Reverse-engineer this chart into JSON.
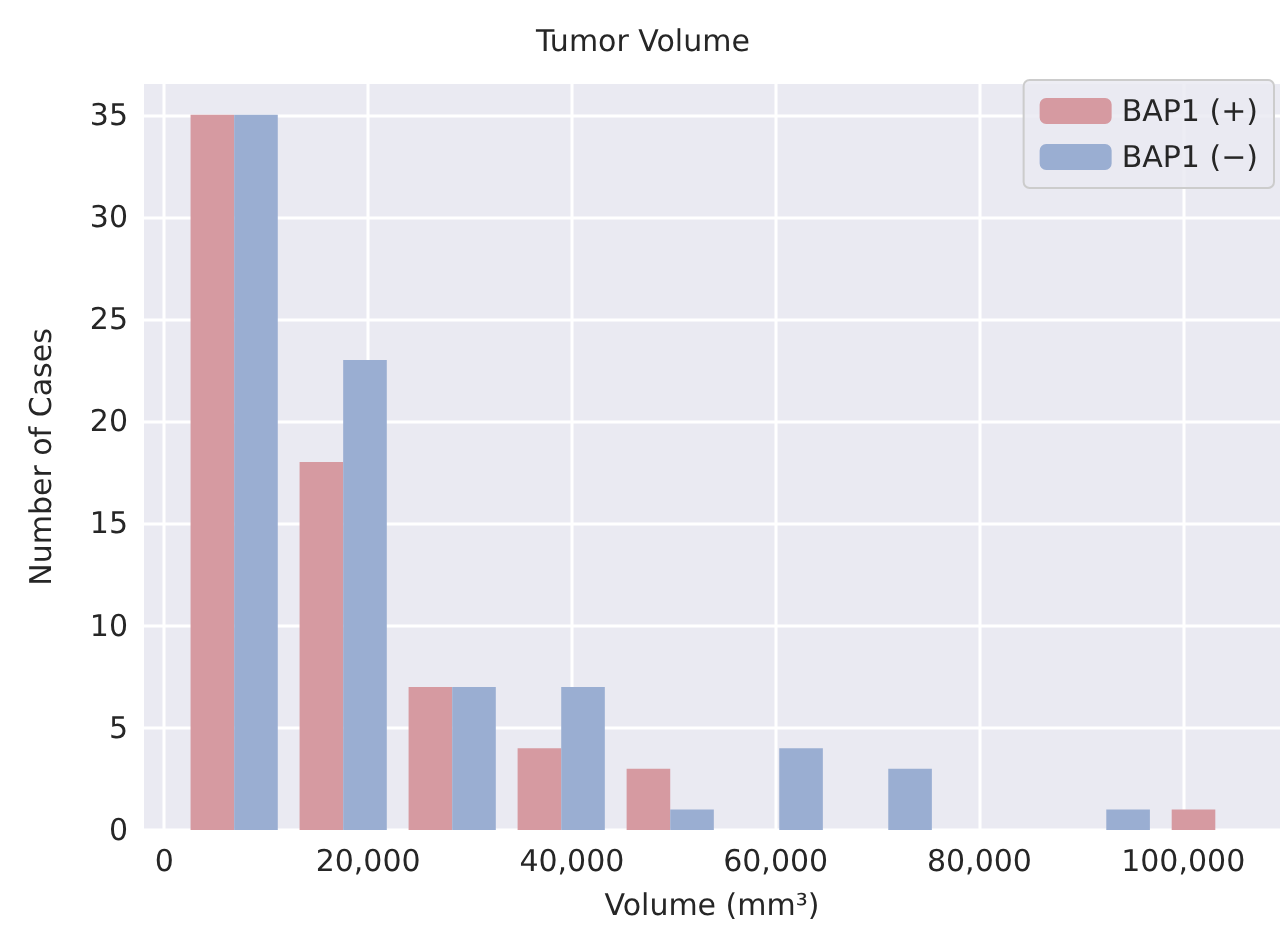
{
  "chart_data": {
    "type": "histogram",
    "title": "Tumor Volume",
    "xlabel": "Volume (mm³)",
    "ylabel": "Number of Cases",
    "bins": [
      1500,
      12200,
      22900,
      33600,
      44300,
      55000,
      65700,
      76400,
      87100,
      97800,
      108500
    ],
    "series": [
      {
        "name": "BAP1 (+)",
        "color": "#d69aa1",
        "values": [
          35,
          18,
          7,
          4,
          3,
          0,
          0,
          0,
          0,
          1
        ]
      },
      {
        "name": "BAP1 (−)",
        "color": "#9aaed2",
        "values": [
          35,
          23,
          7,
          7,
          1,
          4,
          3,
          0,
          1,
          0
        ]
      }
    ],
    "xlim": [
      -2000,
      109500
    ],
    "xticks": [
      0,
      {
        "value": 20000,
        "label": "20,000"
      },
      {
        "value": 40000,
        "label": "40,000"
      },
      {
        "value": 60000,
        "label": "60,000"
      },
      {
        "value": 80000,
        "label": "80,000"
      },
      {
        "value": 100000,
        "label": "100,000"
      }
    ],
    "ylim": [
      0,
      36.5
    ],
    "yticks": [
      0,
      5,
      10,
      15,
      20,
      25,
      30,
      35
    ],
    "grid": true,
    "legend": "top right"
  }
}
